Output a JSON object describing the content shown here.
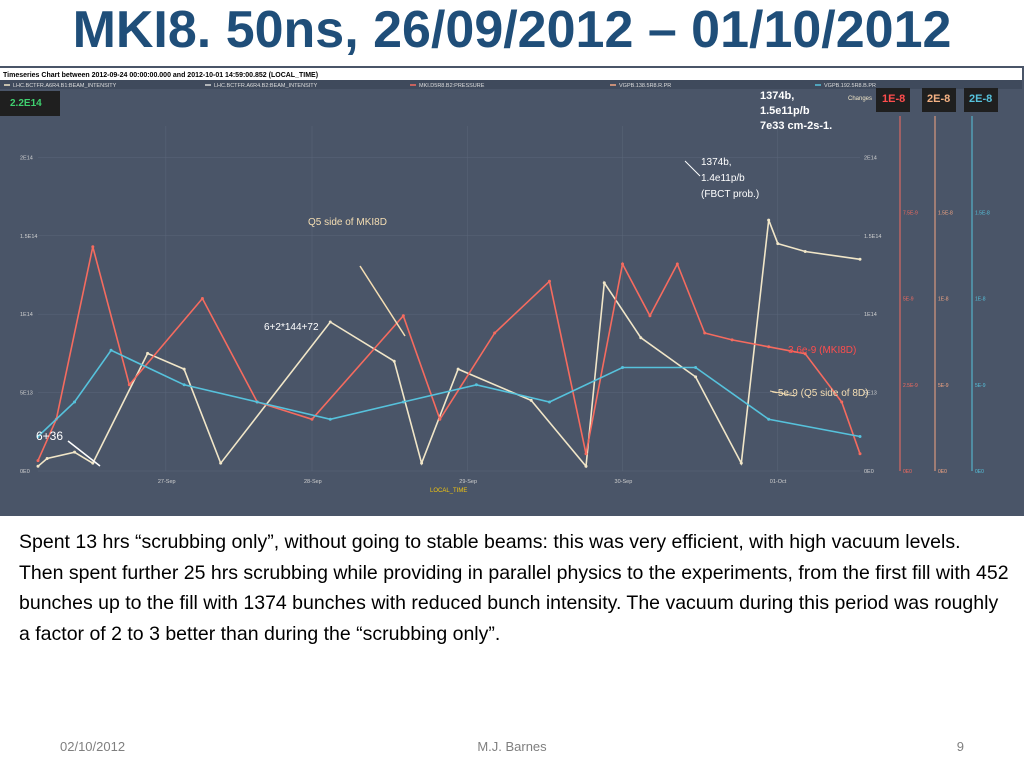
{
  "slide": {
    "title": "MKI8. 50ns, 26/09/2012 – 01/10/2012",
    "paragraphs": [
      "Spent 13 hrs “scrubbing only”, without going to stable beams: this was very efficient, with high vacuum levels.",
      "Then spent further 25 hrs scrubbing while providing in parallel physics to the experiments, from the first fill with 452 bunches up to the fill with 1374 bunches with reduced bunch intensity. The vacuum during this period was roughly a factor of 2 to 3 better than during the “scrubbing only”."
    ],
    "footer_date": "02/10/2012",
    "footer_author": "M.J. Barnes",
    "footer_page": "9"
  },
  "chart_data": {
    "type": "line",
    "title": "Timeseries Chart between 2012-09-24 00:00:00.000 and 2012-10-01 14:59:00.852 (LOCAL_TIME)",
    "xlabel": "LOCAL_TIME",
    "x_ticks": [
      "27-Sep",
      "28-Sep",
      "29-Sep",
      "30-Sep",
      "01-Oct"
    ],
    "x_range": [
      "26-Sep",
      "01-Oct"
    ],
    "changes_label": "Changes",
    "legend": [
      {
        "name": "LHC.BCTFR.A6R4.B1:BEAM_INTENSITY",
        "color": "#f1e6c8"
      },
      {
        "name": "LHC.BCTFR.A6R4.B2:BEAM_INTENSITY",
        "color": "#d7d7d7"
      },
      {
        "name": "MKI.D5R8.B2:PRESSURE",
        "color": "#f56b5f"
      },
      {
        "name": "VGPB.138.5R8.R.PR",
        "color": "#f4a582"
      },
      {
        "name": "VGPB.192.5R8.B.PR",
        "color": "#56c2dc"
      }
    ],
    "y_left": {
      "max_label": "2.2E14",
      "ticks": [
        "0E0",
        "5E13",
        "1E14",
        "1.5E14",
        "2E14"
      ]
    },
    "y_right_axes": [
      {
        "max_label": "1E-8",
        "ticks": [
          "0E0",
          "2.5E-9",
          "5E-9",
          "7.5E-9"
        ],
        "color": "#f56b5f"
      },
      {
        "max_label": "2E-8",
        "ticks": [
          "0E0",
          "5E-9",
          "1E-8",
          "1.5E-8"
        ],
        "color": "#f4a582"
      },
      {
        "max_label": "2E-8",
        "ticks": [
          "0E0",
          "5E-9",
          "1E-8",
          "1.5E-8"
        ],
        "color": "#56c2dc"
      }
    ],
    "series": [
      {
        "name": "LHC.BCTFR.A6R4.B1:BEAM_INTENSITY",
        "color": "#f1e6c8",
        "x": [
          0.0,
          0.05,
          0.2,
          0.3,
          0.6,
          0.8,
          1.0,
          1.6,
          1.95,
          2.1,
          2.3,
          2.7,
          3.0,
          3.1,
          3.3,
          3.6,
          3.85,
          4.0,
          4.05,
          4.2,
          4.5
        ],
        "values": [
          3000000000000.0,
          8000000000000.0,
          12000000000000.0,
          5000000000000.0,
          75000000000000.0,
          65000000000000.0,
          5000000000000.0,
          95000000000000.0,
          70000000000000.0,
          5000000000000.0,
          65000000000000.0,
          45000000000000.0,
          3000000000000.0,
          120000000000000.0,
          85000000000000.0,
          60000000000000.0,
          5000000000000.0,
          160000000000000.0,
          145000000000000.0,
          140000000000000.0,
          135000000000000.0
        ]
      },
      {
        "name": "MKI.D5R8.B2:PRESSURE",
        "color": "#f56b5f",
        "x": [
          0.0,
          0.1,
          0.3,
          0.5,
          0.9,
          1.2,
          1.5,
          2.0,
          2.2,
          2.5,
          2.8,
          3.0,
          3.2,
          3.35,
          3.5,
          3.65,
          3.8,
          4.0,
          4.2,
          4.4,
          4.5
        ],
        "values": [
          3e-10,
          1.5e-09,
          6.5e-09,
          2.5e-09,
          5e-09,
          2e-09,
          1.5e-09,
          4.5e-09,
          1.5e-09,
          4e-09,
          5.5e-09,
          5e-10,
          6e-09,
          4.5e-09,
          6e-09,
          4e-09,
          3.8e-09,
          3.6e-09,
          3.4e-09,
          2e-09,
          5e-10
        ]
      },
      {
        "name": "VGPB.192.5R8.B.PR",
        "color": "#56c2dc",
        "x": [
          0.0,
          0.2,
          0.4,
          0.8,
          1.2,
          1.6,
          2.0,
          2.4,
          2.8,
          3.2,
          3.6,
          4.0,
          4.5
        ],
        "values": [
          1e-09,
          2e-09,
          3.5e-09,
          2.5e-09,
          2e-09,
          1.5e-09,
          2e-09,
          2.5e-09,
          2e-09,
          3e-09,
          3e-09,
          1.5e-09,
          1e-09
        ]
      }
    ],
    "annotations": [
      {
        "text": "1374b,",
        "color": "#ffffff",
        "bold": true
      },
      {
        "text": "1.5e11p/b",
        "color": "#ffffff",
        "bold": true
      },
      {
        "text": "7e33 cm-2s-1.",
        "color": "#ffffff",
        "bold": true
      },
      {
        "text": "1374b,",
        "color": "#ffffff"
      },
      {
        "text": "1.4e11p/b",
        "color": "#ffffff"
      },
      {
        "text": "(FBCT prob.)",
        "color": "#ffffff"
      },
      {
        "text": "Q5 side of MKI8D",
        "color": "#f5deb3"
      },
      {
        "text": "6+2*144+72",
        "color": "#ffffff"
      },
      {
        "text": "3.6e-9 (MKI8D)",
        "color": "#ff4d4d"
      },
      {
        "text": "~5e-9 (Q5 side of 8D)",
        "color": "#f5deb3"
      },
      {
        "text": "6+36",
        "color": "#ffffff"
      }
    ],
    "grid": true,
    "legend_position": "top"
  }
}
